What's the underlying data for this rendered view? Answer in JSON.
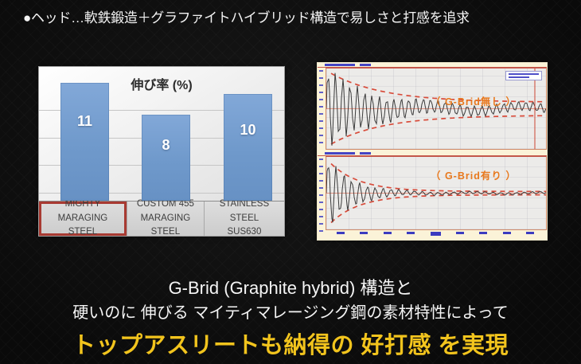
{
  "slide": {
    "header": "●ヘッド…軟鉄鍛造＋グラファイトハイブリッド構造で易しさと打感を追求",
    "footer_line1": "G-Brid (Graphite hybrid) 構造と",
    "footer_line2": "硬いのに 伸びる マイティマレージング鋼の素材特性によって",
    "footer_line3": "トップアスリートも納得の 好打感 を実現",
    "colors": {
      "background": "#0d0d0d",
      "heading_text": "#f4f4f4",
      "footer_accent": "#f2c41d"
    }
  },
  "bar_chart": {
    "title": "伸び率 (%)",
    "bar_color": "#7099cb",
    "highlight_border_color": "#a83a32",
    "labels": [
      {
        "line1": "MIGHTY MARAGING",
        "line2": "STEEL"
      },
      {
        "line1": "CUSTOM 455",
        "line2": "MARAGING STEEL"
      },
      {
        "line1": "STAINLESS STEEL",
        "line2": "SUS630"
      }
    ]
  },
  "scope": {
    "graphs": [
      {
        "label": "（ G-Brid無し ）"
      },
      {
        "label": "（ G-Brid有り ）"
      }
    ],
    "label_color": "#e8791e",
    "envelope_color": "#d84b3a",
    "trace_color": "#3a3a3a"
  },
  "chart_data": [
    {
      "type": "bar",
      "title": "伸び率 (%)",
      "categories": [
        "MIGHTY MARAGING STEEL",
        "CUSTOM 455 MARAGING STEEL",
        "STAINLESS STEEL SUS630"
      ],
      "values": [
        11,
        8,
        10
      ],
      "xlabel": "",
      "ylabel": "伸び率 (%)",
      "ylim": [
        0,
        12.5
      ],
      "grid": true,
      "highlighted_category": "MIGHTY MARAGING STEEL"
    },
    {
      "type": "line",
      "title": "（ G-Brid無し ）",
      "series": [
        {
          "name": "vibration waveform",
          "shape": "damped oscillation, slow decay, vibration persists to right edge"
        }
      ],
      "annotations": [
        "red dashed decay envelope stays wide",
        "red vertical cursor line near right edge",
        "small legend box top-right"
      ],
      "params": {
        "cycles": 30,
        "decay": 5.5,
        "floor": 0.1,
        "wobble_amp": 0.07,
        "wobble_freq": 2.3,
        "env_decay": 4.2,
        "env_floor": 0.17,
        "cursor_x": 0.95
      }
    },
    {
      "type": "line",
      "title": "（ G-Brid有り ）",
      "series": [
        {
          "name": "vibration waveform",
          "shape": "damped oscillation, fast decay, vibration dies out by mid-chart"
        }
      ],
      "annotations": [
        "red dashed decay envelope pinches tight to centerline",
        "blue tick labels along bottom axis"
      ],
      "params": {
        "cycles": 28,
        "decay": 9,
        "floor": 0.03,
        "wobble_amp": 0.02,
        "wobble_freq": 3.1,
        "env_decay": 7.5,
        "env_floor": 0.05,
        "cursor_x": null
      }
    }
  ]
}
